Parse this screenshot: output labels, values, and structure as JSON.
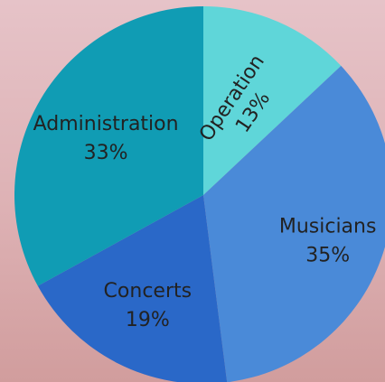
{
  "chart_data": {
    "type": "pie",
    "title": "",
    "start_angle_deg": 0,
    "direction": "clockwise",
    "slices": [
      {
        "label": "Operation",
        "percent_label": "13%",
        "value": 13,
        "color": "#5fd6d9"
      },
      {
        "label": "Musicians",
        "percent_label": "35%",
        "value": 35,
        "color": "#4a8ad8"
      },
      {
        "label": "Concerts",
        "percent_label": "19%",
        "value": 19,
        "color": "#2a68c8"
      },
      {
        "label": "Administration",
        "percent_label": "33%",
        "value": 33,
        "color": "#109cb4"
      }
    ]
  }
}
